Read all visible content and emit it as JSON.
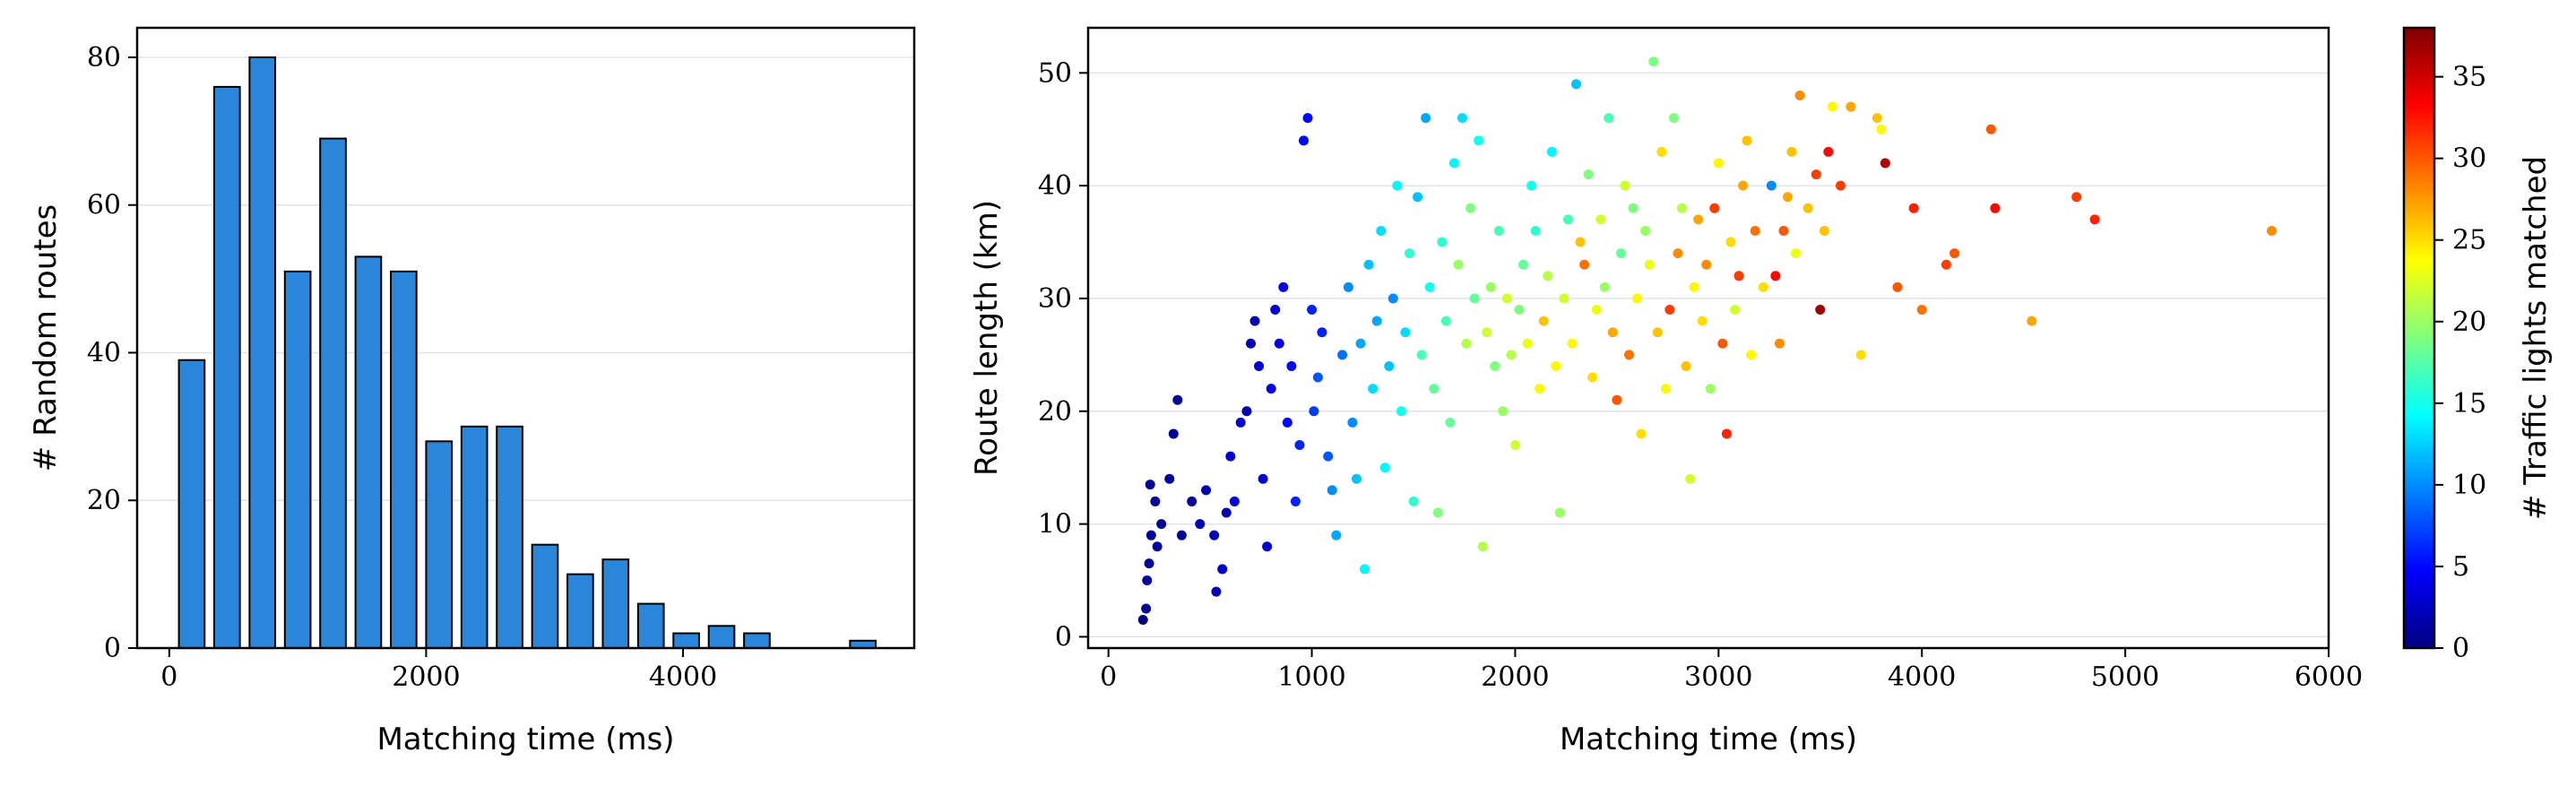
{
  "chart_data": [
    {
      "type": "bar",
      "title": "",
      "xlabel": "Matching time (ms)",
      "ylabel": "# Random routes",
      "xlim": [
        -250,
        5800
      ],
      "ylim": [
        0,
        84
      ],
      "xticks": [
        0,
        2000,
        4000
      ],
      "yticks": [
        0,
        20,
        40,
        60,
        80
      ],
      "xtick_labels": [
        "0",
        "2000",
        "4000"
      ],
      "ytick_labels": [
        "0",
        "20",
        "40",
        "60",
        "80"
      ],
      "grid": "y",
      "bar_color": "#2a86d9",
      "bins": [
        {
          "x0": 75,
          "x1": 275,
          "value": 39
        },
        {
          "x0": 350,
          "x1": 550,
          "value": 76
        },
        {
          "x0": 625,
          "x1": 825,
          "value": 80
        },
        {
          "x0": 900,
          "x1": 1100,
          "value": 51
        },
        {
          "x0": 1175,
          "x1": 1375,
          "value": 69
        },
        {
          "x0": 1450,
          "x1": 1650,
          "value": 53
        },
        {
          "x0": 1725,
          "x1": 1925,
          "value": 51
        },
        {
          "x0": 2000,
          "x1": 2200,
          "value": 28
        },
        {
          "x0": 2275,
          "x1": 2475,
          "value": 30
        },
        {
          "x0": 2550,
          "x1": 2750,
          "value": 30
        },
        {
          "x0": 2825,
          "x1": 3025,
          "value": 14
        },
        {
          "x0": 3100,
          "x1": 3300,
          "value": 10
        },
        {
          "x0": 3375,
          "x1": 3575,
          "value": 12
        },
        {
          "x0": 3650,
          "x1": 3850,
          "value": 6
        },
        {
          "x0": 3925,
          "x1": 4125,
          "value": 2
        },
        {
          "x0": 4200,
          "x1": 4400,
          "value": 3
        },
        {
          "x0": 4475,
          "x1": 4675,
          "value": 2
        },
        {
          "x0": 5300,
          "x1": 5500,
          "value": 1
        }
      ]
    },
    {
      "type": "scatter",
      "title": "",
      "xlabel": "Matching time (ms)",
      "ylabel": "Route length (km)",
      "xlim": [
        -100,
        6000
      ],
      "ylim": [
        -1,
        54
      ],
      "xticks": [
        0,
        1000,
        2000,
        3000,
        4000,
        5000,
        6000
      ],
      "yticks": [
        0,
        10,
        20,
        30,
        40,
        50
      ],
      "xtick_labels": [
        "0",
        "1000",
        "2000",
        "3000",
        "4000",
        "5000",
        "6000"
      ],
      "ytick_labels": [
        "0",
        "10",
        "20",
        "30",
        "40",
        "50"
      ],
      "grid": "y",
      "colormap": "jet",
      "colorbar": {
        "label": "# Traffic lights matched",
        "range": [
          0,
          38
        ],
        "ticks": [
          0,
          5,
          10,
          15,
          20,
          25,
          30,
          35
        ],
        "tick_labels": [
          "0",
          "5",
          "10",
          "15",
          "20",
          "25",
          "30",
          "35"
        ],
        "colors": [
          "#00007f",
          "#0000ff",
          "#007fff",
          "#00ffff",
          "#7fff7f",
          "#ffff00",
          "#ff7f00",
          "#ff0000",
          "#7f0000"
        ]
      },
      "points": [
        [
          170,
          1.5,
          0
        ],
        [
          185,
          2.5,
          1
        ],
        [
          190,
          5,
          1
        ],
        [
          200,
          6.5,
          1
        ],
        [
          210,
          9,
          1
        ],
        [
          205,
          13.5,
          1
        ],
        [
          230,
          12,
          1
        ],
        [
          240,
          8,
          1
        ],
        [
          260,
          10,
          1
        ],
        [
          300,
          14,
          1
        ],
        [
          320,
          18,
          1
        ],
        [
          340,
          21,
          1
        ],
        [
          360,
          9,
          1
        ],
        [
          410,
          12,
          1
        ],
        [
          450,
          10,
          2
        ],
        [
          480,
          13,
          2
        ],
        [
          520,
          9,
          2
        ],
        [
          530,
          4,
          2
        ],
        [
          560,
          6,
          3
        ],
        [
          580,
          11,
          2
        ],
        [
          600,
          16,
          3
        ],
        [
          620,
          12,
          3
        ],
        [
          650,
          19,
          3
        ],
        [
          680,
          20,
          2
        ],
        [
          700,
          26,
          2
        ],
        [
          720,
          28,
          2
        ],
        [
          740,
          24,
          3
        ],
        [
          760,
          14,
          3
        ],
        [
          780,
          8,
          3
        ],
        [
          800,
          22,
          4
        ],
        [
          820,
          29,
          3
        ],
        [
          840,
          26,
          4
        ],
        [
          860,
          31,
          4
        ],
        [
          880,
          19,
          5
        ],
        [
          900,
          24,
          5
        ],
        [
          920,
          12,
          6
        ],
        [
          940,
          17,
          6
        ],
        [
          960,
          44,
          5
        ],
        [
          980,
          46,
          5
        ],
        [
          1000,
          29,
          6
        ],
        [
          1010,
          20,
          7
        ],
        [
          1030,
          23,
          8
        ],
        [
          1050,
          27,
          6
        ],
        [
          1080,
          16,
          8
        ],
        [
          1100,
          13,
          10
        ],
        [
          1120,
          9,
          11
        ],
        [
          1150,
          25,
          9
        ],
        [
          1180,
          31,
          10
        ],
        [
          1200,
          19,
          10
        ],
        [
          1220,
          14,
          12
        ],
        [
          1240,
          26,
          11
        ],
        [
          1260,
          6,
          14
        ],
        [
          1280,
          33,
          12
        ],
        [
          1300,
          22,
          13
        ],
        [
          1320,
          28,
          11
        ],
        [
          1340,
          36,
          13
        ],
        [
          1360,
          15,
          14
        ],
        [
          1380,
          24,
          12
        ],
        [
          1400,
          30,
          10
        ],
        [
          1420,
          40,
          14
        ],
        [
          1440,
          20,
          15
        ],
        [
          1460,
          27,
          13
        ],
        [
          1480,
          34,
          16
        ],
        [
          1500,
          12,
          16
        ],
        [
          1520,
          39,
          12
        ],
        [
          1540,
          25,
          17
        ],
        [
          1560,
          46,
          11
        ],
        [
          1580,
          31,
          15
        ],
        [
          1600,
          22,
          18
        ],
        [
          1620,
          11,
          19
        ],
        [
          1640,
          35,
          16
        ],
        [
          1660,
          28,
          17
        ],
        [
          1680,
          19,
          18
        ],
        [
          1700,
          42,
          14
        ],
        [
          1720,
          33,
          20
        ],
        [
          1740,
          46,
          13
        ],
        [
          1760,
          26,
          21
        ],
        [
          1780,
          38,
          19
        ],
        [
          1800,
          30,
          18
        ],
        [
          1820,
          44,
          15
        ],
        [
          1840,
          8,
          21
        ],
        [
          1860,
          27,
          22
        ],
        [
          1880,
          31,
          20
        ],
        [
          1900,
          24,
          19
        ],
        [
          1920,
          36,
          17
        ],
        [
          1940,
          20,
          20
        ],
        [
          1960,
          30,
          22
        ],
        [
          1980,
          25,
          21
        ],
        [
          2000,
          17,
          22
        ],
        [
          2020,
          29,
          19
        ],
        [
          2040,
          33,
          18
        ],
        [
          2060,
          26,
          23
        ],
        [
          2080,
          40,
          15
        ],
        [
          2100,
          36,
          16
        ],
        [
          2120,
          22,
          24
        ],
        [
          2140,
          28,
          26
        ],
        [
          2160,
          32,
          21
        ],
        [
          2180,
          43,
          14
        ],
        [
          2200,
          24,
          24
        ],
        [
          2220,
          11,
          20
        ],
        [
          2240,
          30,
          22
        ],
        [
          2260,
          37,
          17
        ],
        [
          2280,
          26,
          24
        ],
        [
          2300,
          49,
          12
        ],
        [
          2320,
          35,
          26
        ],
        [
          2340,
          33,
          29
        ],
        [
          2360,
          41,
          19
        ],
        [
          2380,
          23,
          25
        ],
        [
          2400,
          29,
          23
        ],
        [
          2420,
          37,
          22
        ],
        [
          2440,
          31,
          20
        ],
        [
          2460,
          46,
          17
        ],
        [
          2480,
          27,
          27
        ],
        [
          2500,
          21,
          30
        ],
        [
          2520,
          34,
          18
        ],
        [
          2540,
          40,
          22
        ],
        [
          2560,
          25,
          29
        ],
        [
          2580,
          38,
          19
        ],
        [
          2600,
          30,
          24
        ],
        [
          2620,
          18,
          25
        ],
        [
          2640,
          36,
          20
        ],
        [
          2660,
          33,
          23
        ],
        [
          2680,
          51,
          19
        ],
        [
          2700,
          27,
          26
        ],
        [
          2720,
          43,
          25
        ],
        [
          2740,
          22,
          24
        ],
        [
          2760,
          29,
          31
        ],
        [
          2780,
          46,
          19
        ],
        [
          2800,
          34,
          28
        ],
        [
          2820,
          38,
          21
        ],
        [
          2840,
          24,
          26
        ],
        [
          2860,
          14,
          22
        ],
        [
          2880,
          31,
          24
        ],
        [
          2900,
          37,
          27
        ],
        [
          2920,
          28,
          25
        ],
        [
          2940,
          33,
          28
        ],
        [
          2960,
          22,
          20
        ],
        [
          2980,
          38,
          31
        ],
        [
          3000,
          42,
          24
        ],
        [
          3020,
          26,
          30
        ],
        [
          3040,
          18,
          32
        ],
        [
          3060,
          35,
          25
        ],
        [
          3080,
          29,
          22
        ],
        [
          3100,
          32,
          31
        ],
        [
          3120,
          40,
          27
        ],
        [
          3140,
          44,
          26
        ],
        [
          3160,
          25,
          24
        ],
        [
          3180,
          36,
          29
        ],
        [
          3220,
          31,
          25
        ],
        [
          3260,
          40,
          10
        ],
        [
          3280,
          32,
          33
        ],
        [
          3300,
          26,
          28
        ],
        [
          3320,
          36,
          30
        ],
        [
          3340,
          39,
          27
        ],
        [
          3360,
          43,
          26
        ],
        [
          3380,
          34,
          23
        ],
        [
          3400,
          48,
          28
        ],
        [
          3440,
          38,
          26
        ],
        [
          3480,
          41,
          31
        ],
        [
          3500,
          29,
          37
        ],
        [
          3520,
          36,
          26
        ],
        [
          3540,
          43,
          33
        ],
        [
          3560,
          47,
          24
        ],
        [
          3600,
          40,
          31
        ],
        [
          3650,
          47,
          27
        ],
        [
          3700,
          25,
          25
        ],
        [
          3780,
          46,
          26
        ],
        [
          3800,
          45,
          24
        ],
        [
          3820,
          42,
          36
        ],
        [
          3880,
          31,
          30
        ],
        [
          3960,
          38,
          32
        ],
        [
          4000,
          29,
          29
        ],
        [
          4120,
          33,
          31
        ],
        [
          4160,
          34,
          30
        ],
        [
          4340,
          45,
          30
        ],
        [
          4360,
          38,
          33
        ],
        [
          4540,
          28,
          27
        ],
        [
          4760,
          39,
          31
        ],
        [
          4850,
          37,
          32
        ],
        [
          5720,
          36,
          28
        ]
      ]
    }
  ]
}
